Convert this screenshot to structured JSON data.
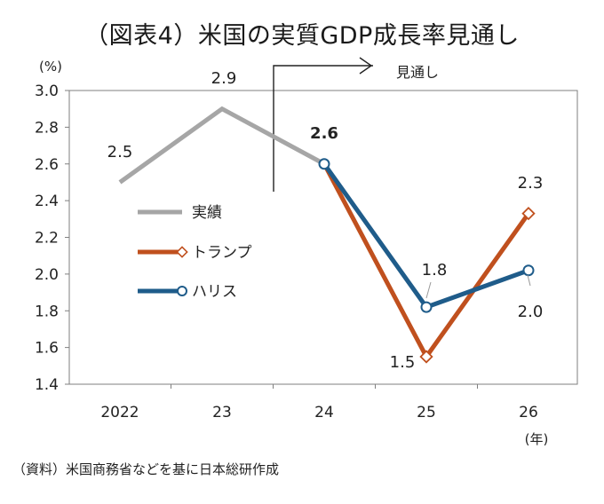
{
  "title": "（図表4）米国の実質GDP成長率見通し",
  "source": "（資料）米国商務省などを基に日本総研作成",
  "chart_data": {
    "type": "line",
    "title": "（図表4）米国の実質GDP成長率見通し",
    "ylabel": "(%)",
    "xlabel": "(年)",
    "ylim": [
      1.4,
      3.0
    ],
    "yticks": [
      "1.4",
      "1.6",
      "1.8",
      "2.0",
      "2.2",
      "2.4",
      "2.6",
      "2.8",
      "3.0"
    ],
    "categories": [
      "2022",
      "23",
      "24",
      "25",
      "26"
    ],
    "forecast_label": "見通し",
    "grid": false,
    "legend_position": "left-middle",
    "series": [
      {
        "name": "実績",
        "color": "#a6a6a6",
        "values": [
          2.5,
          2.9,
          2.6,
          null,
          null
        ],
        "labels": [
          "2.5",
          "2.9",
          "2.6",
          "",
          ""
        ]
      },
      {
        "name": "トランプ",
        "color": "#c0501e",
        "values": [
          null,
          null,
          2.6,
          1.55,
          2.33
        ],
        "labels": [
          "",
          "",
          "",
          "1.5",
          "2.3"
        ]
      },
      {
        "name": "ハリス",
        "color": "#1f5c8a",
        "values": [
          null,
          null,
          2.6,
          1.82,
          2.02
        ],
        "labels": [
          "",
          "",
          "",
          "1.8",
          "2.0"
        ]
      }
    ]
  }
}
